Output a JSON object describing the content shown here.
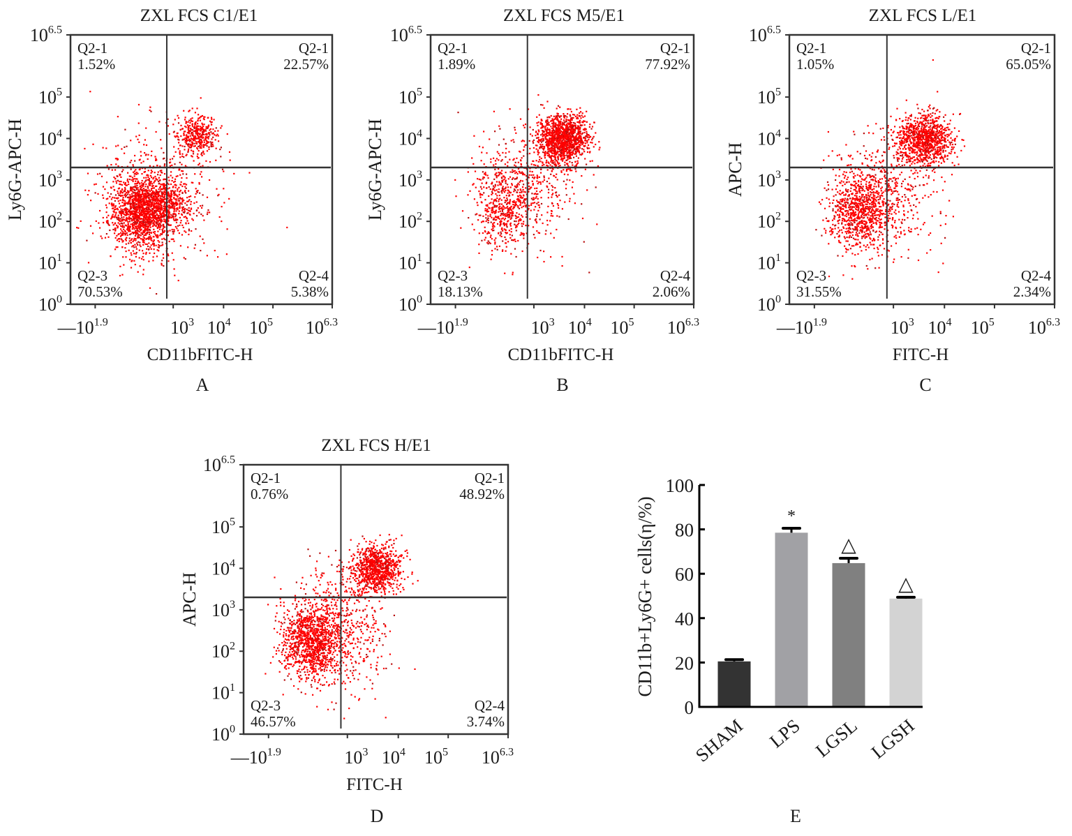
{
  "chart_data": [
    {
      "type": "scatter",
      "panel": "A",
      "title": "ZXL FCS C1/E1",
      "xlabel": "CD11bFITC-H",
      "ylabel": "Ly6G-APC-H",
      "x_ticks": [
        "−10^1.9",
        "10^3",
        "10^4",
        "10^5",
        "10^6.3"
      ],
      "y_ticks": [
        "10^0",
        "10^1",
        "10^2",
        "10^3",
        "10^4",
        "10^5",
        "10^6.5"
      ],
      "quadrants": [
        {
          "position": "top-left",
          "name": "Q2-1",
          "value": "1.52%"
        },
        {
          "position": "top-right",
          "name": "Q2-1",
          "value": "22.57%"
        },
        {
          "position": "bottom-left",
          "name": "Q2-3",
          "value": "70.53%"
        },
        {
          "position": "bottom-right",
          "name": "Q2-4",
          "value": "5.38%"
        }
      ],
      "clusters": [
        {
          "x": 2.4,
          "y": 2.25,
          "sx": 0.32,
          "sy": 0.45,
          "n": 1400
        },
        {
          "x": 2.9,
          "y": 2.4,
          "sx": 0.28,
          "sy": 0.3,
          "n": 400
        },
        {
          "x": 3.55,
          "y": 4.1,
          "sx": 0.2,
          "sy": 0.25,
          "n": 380
        },
        {
          "x": 2.8,
          "y": 2.6,
          "sx": 0.6,
          "sy": 0.8,
          "n": 500
        }
      ]
    },
    {
      "type": "scatter",
      "panel": "B",
      "title": "ZXL FCS M5/E1",
      "xlabel": "CD11bFITC-H",
      "ylabel": "Ly6G-APC-H",
      "x_ticks": [
        "−10^1.9",
        "10^3",
        "10^4",
        "10^5",
        "10^6.3"
      ],
      "y_ticks": [
        "10^0",
        "10^1",
        "10^2",
        "10^3",
        "10^4",
        "10^5",
        "10^6.5"
      ],
      "quadrants": [
        {
          "position": "top-left",
          "name": "Q2-1",
          "value": "1.89%"
        },
        {
          "position": "top-right",
          "name": "Q2-1",
          "value": "77.92%"
        },
        {
          "position": "bottom-left",
          "name": "Q2-3",
          "value": "18.13%"
        },
        {
          "position": "bottom-right",
          "name": "Q2-4",
          "value": "2.06%"
        }
      ],
      "clusters": [
        {
          "x": 3.65,
          "y": 4.0,
          "sx": 0.25,
          "sy": 0.3,
          "n": 1300
        },
        {
          "x": 2.45,
          "y": 2.3,
          "sx": 0.3,
          "sy": 0.5,
          "n": 450
        },
        {
          "x": 2.9,
          "y": 2.9,
          "sx": 0.5,
          "sy": 0.7,
          "n": 450
        }
      ]
    },
    {
      "type": "scatter",
      "panel": "C",
      "title": "ZXL FCS L/E1",
      "xlabel": "FITC-H",
      "ylabel": "APC-H",
      "x_ticks": [
        "−10^1.9",
        "10^3",
        "10^4",
        "10^5",
        "10^6.3"
      ],
      "y_ticks": [
        "10^0",
        "10^1",
        "10^2",
        "10^3",
        "10^4",
        "10^5",
        "10^6.5"
      ],
      "quadrants": [
        {
          "position": "top-left",
          "name": "Q2-1",
          "value": "1.05%"
        },
        {
          "position": "top-right",
          "name": "Q2-1",
          "value": "65.05%"
        },
        {
          "position": "bottom-left",
          "name": "Q2-3",
          "value": "31.55%"
        },
        {
          "position": "bottom-right",
          "name": "Q2-4",
          "value": "2.34%"
        }
      ],
      "clusters": [
        {
          "x": 3.7,
          "y": 4.0,
          "sx": 0.28,
          "sy": 0.3,
          "n": 1000
        },
        {
          "x": 2.4,
          "y": 2.25,
          "sx": 0.3,
          "sy": 0.45,
          "n": 800
        },
        {
          "x": 2.9,
          "y": 2.7,
          "sx": 0.5,
          "sy": 0.75,
          "n": 500
        }
      ]
    },
    {
      "type": "scatter",
      "panel": "D",
      "title": "ZXL FCS H/E1",
      "xlabel": "FITC-H",
      "ylabel": "APC-H",
      "x_ticks": [
        "−10^1.9",
        "10^3",
        "10^4",
        "10^5",
        "10^6.3"
      ],
      "y_ticks": [
        "10^0",
        "10^1",
        "10^2",
        "10^3",
        "10^4",
        "10^5",
        "10^6.5"
      ],
      "quadrants": [
        {
          "position": "top-left",
          "name": "Q2-1",
          "value": "0.76%"
        },
        {
          "position": "top-right",
          "name": "Q2-1",
          "value": "48.92%"
        },
        {
          "position": "bottom-left",
          "name": "Q2-3",
          "value": "46.57%"
        },
        {
          "position": "bottom-right",
          "name": "Q2-4",
          "value": "3.74%"
        }
      ],
      "clusters": [
        {
          "x": 3.65,
          "y": 4.0,
          "sx": 0.25,
          "sy": 0.28,
          "n": 900
        },
        {
          "x": 2.35,
          "y": 2.25,
          "sx": 0.3,
          "sy": 0.45,
          "n": 1100
        },
        {
          "x": 2.9,
          "y": 2.6,
          "sx": 0.5,
          "sy": 0.75,
          "n": 550
        }
      ]
    },
    {
      "type": "bar",
      "panel": "E",
      "title": "",
      "xlabel": "",
      "ylabel": "CD11b+Ly6G+ cells(η/%)",
      "ylim": [
        0,
        100
      ],
      "y_ticks": [
        0,
        20,
        40,
        60,
        80,
        100
      ],
      "categories": [
        "SHAM",
        "LPS",
        "LGSL",
        "LGSH"
      ],
      "values": [
        20.5,
        78.5,
        64.8,
        48.8
      ],
      "errors": [
        0.8,
        2.0,
        2.2,
        0.6
      ],
      "colors": [
        "#333333",
        "#a1a1a5",
        "#808080",
        "#d3d3d3"
      ],
      "annotations": [
        "",
        "*",
        "△",
        "△"
      ],
      "grid": false
    }
  ],
  "panel_labels": [
    "A",
    "B",
    "C",
    "D",
    "E"
  ],
  "colors": {
    "dots": "#ff0000",
    "axis": "#1a1a1a"
  }
}
